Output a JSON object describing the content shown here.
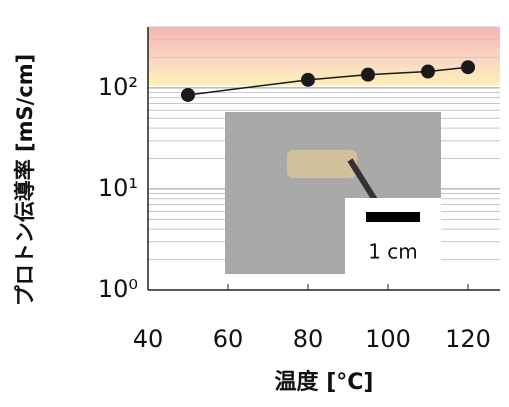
{
  "chart_data": {
    "type": "line",
    "x_label": "温度 [°C]",
    "y_label": "プロトン伝導率 [mS/cm]",
    "x": [
      50,
      80,
      95,
      110,
      120
    ],
    "series": [
      {
        "color": "#1a1a1a",
        "values": [
          85,
          120,
          135,
          145,
          160
        ]
      }
    ],
    "xlim": [
      40,
      128
    ],
    "xticks": [
      40,
      60,
      80,
      100,
      120
    ],
    "ylim": [
      1,
      400
    ],
    "log_y": true,
    "yticks": [
      {
        "value": 1,
        "label": "10⁰"
      },
      {
        "value": 10,
        "label": "10¹"
      },
      {
        "value": 100,
        "label": "10²"
      }
    ],
    "minor_yticks": [
      2,
      3,
      4,
      5,
      6,
      7,
      8,
      9,
      20,
      30,
      40,
      50,
      60,
      70,
      80,
      90,
      200,
      300,
      400
    ],
    "highlight_ylim": [
      105,
      400
    ],
    "inset_label": "1 cm"
  }
}
